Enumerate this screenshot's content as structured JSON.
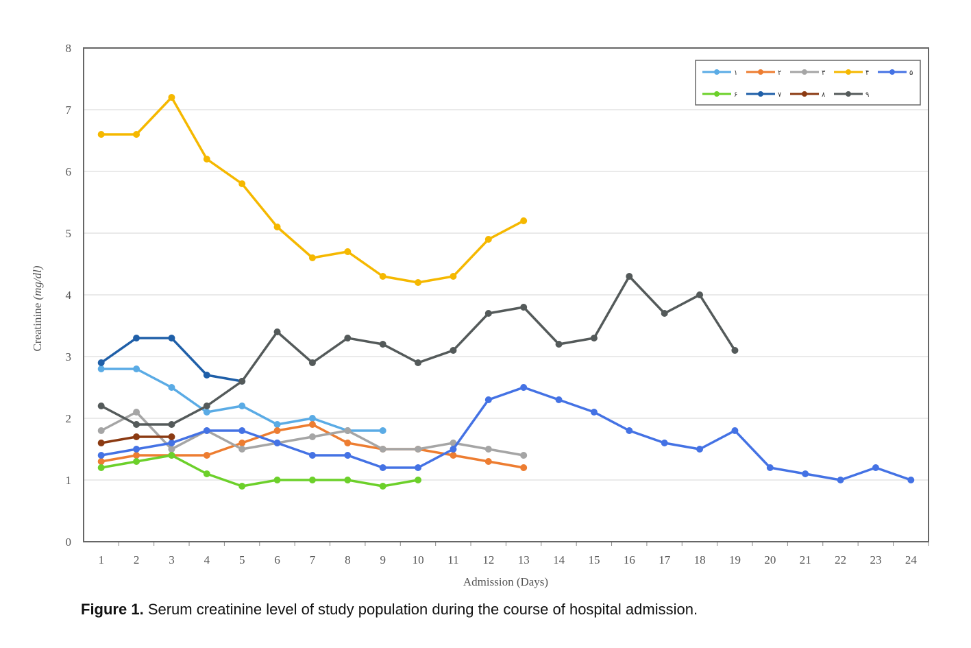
{
  "chart_data": {
    "type": "line",
    "x_label": "Admission (Days)",
    "y_label": "Creatinine",
    "y_label_unit": "(mg/dl)",
    "caption_label": "Figure 1.",
    "caption": "Serum creatinine level of study population during the course of hospital admission.",
    "x": [
      1,
      2,
      3,
      4,
      5,
      6,
      7,
      8,
      9,
      10,
      11,
      12,
      13,
      14,
      15,
      16,
      17,
      18,
      19,
      20,
      21,
      22,
      23,
      24
    ],
    "xlim": [
      0.5,
      24.5
    ],
    "xticks": [
      1,
      2,
      3,
      4,
      5,
      6,
      7,
      8,
      9,
      10,
      11,
      12,
      13,
      14,
      15,
      16,
      17,
      18,
      19,
      20,
      21,
      22,
      23,
      24
    ],
    "ylim": [
      0,
      8
    ],
    "yticks": [
      0,
      1,
      2,
      3,
      4,
      5,
      6,
      7,
      8
    ],
    "grid": true,
    "legend": "top-right",
    "series": [
      {
        "name": "۱",
        "color": "#5aabe5",
        "values": [
          2.8,
          2.8,
          2.5,
          2.1,
          2.2,
          1.9,
          2.0,
          1.8,
          1.8,
          null,
          null,
          null,
          null,
          null,
          null,
          null,
          null,
          null,
          null,
          null,
          null,
          null,
          null,
          null
        ]
      },
      {
        "name": "۲",
        "color": "#ed7d31",
        "values": [
          1.3,
          1.4,
          1.4,
          1.4,
          1.6,
          1.8,
          1.9,
          1.6,
          1.5,
          1.5,
          1.4,
          1.3,
          1.2,
          null,
          null,
          null,
          null,
          null,
          null,
          null,
          null,
          null,
          null,
          null
        ]
      },
      {
        "name": "۳",
        "color": "#a5a5a5",
        "values": [
          1.8,
          2.1,
          1.5,
          1.8,
          1.5,
          1.6,
          1.7,
          1.8,
          1.5,
          1.5,
          1.6,
          1.5,
          1.4,
          null,
          null,
          null,
          null,
          null,
          null,
          null,
          null,
          null,
          null,
          null
        ]
      },
      {
        "name": "۴",
        "color": "#f5b800",
        "values": [
          6.6,
          6.6,
          7.2,
          6.2,
          5.8,
          5.1,
          4.6,
          4.7,
          4.3,
          4.2,
          4.3,
          4.9,
          5.2,
          null,
          null,
          null,
          null,
          null,
          null,
          null,
          null,
          null,
          null,
          null
        ]
      },
      {
        "name": "۵",
        "color": "#4472e4",
        "values": [
          1.4,
          1.5,
          1.6,
          1.8,
          1.8,
          1.6,
          1.4,
          1.4,
          1.2,
          1.2,
          1.5,
          2.3,
          2.5,
          2.3,
          2.1,
          1.8,
          1.6,
          1.5,
          1.8,
          1.2,
          1.1,
          1.0,
          1.2,
          1.0
        ]
      },
      {
        "name": "۶",
        "color": "#6cd02a",
        "values": [
          1.2,
          1.3,
          1.4,
          1.1,
          0.9,
          1.0,
          1.0,
          1.0,
          0.9,
          1.0,
          null,
          null,
          null,
          null,
          null,
          null,
          null,
          null,
          null,
          null,
          null,
          null,
          null,
          null
        ]
      },
      {
        "name": "۷",
        "color": "#1f5fa8",
        "values": [
          2.9,
          3.3,
          3.3,
          2.7,
          2.6,
          null,
          null,
          null,
          null,
          null,
          null,
          null,
          null,
          null,
          null,
          null,
          null,
          null,
          null,
          null,
          null,
          null,
          null,
          null
        ]
      },
      {
        "name": "۸",
        "color": "#8b3a12",
        "values": [
          1.6,
          1.7,
          1.7,
          null,
          null,
          null,
          null,
          null,
          null,
          null,
          null,
          null,
          null,
          null,
          null,
          null,
          null,
          null,
          null,
          null,
          null,
          null,
          null,
          null
        ]
      },
      {
        "name": "۹",
        "color": "#545a5a",
        "values": [
          2.2,
          1.9,
          1.9,
          2.2,
          2.6,
          3.4,
          2.9,
          3.3,
          3.2,
          2.9,
          3.1,
          3.7,
          3.8,
          3.2,
          3.3,
          4.3,
          3.7,
          4.0,
          3.1,
          null,
          null,
          null,
          null,
          null
        ]
      }
    ]
  }
}
